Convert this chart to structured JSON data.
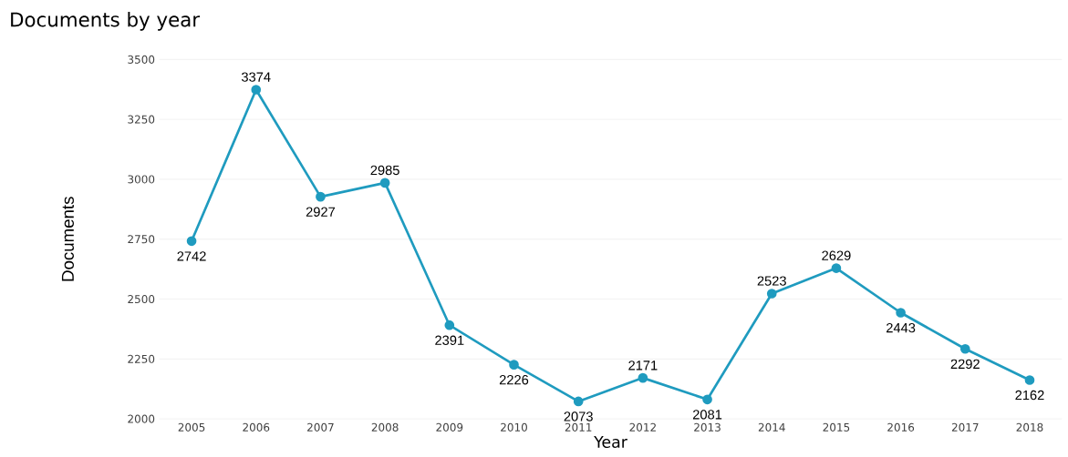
{
  "chart_data": {
    "type": "line",
    "title": "Documents by year",
    "xlabel": "Year",
    "ylabel": "Documents",
    "categories": [
      "2005",
      "2006",
      "2007",
      "2008",
      "2009",
      "2010",
      "2011",
      "2012",
      "2013",
      "2014",
      "2015",
      "2016",
      "2017",
      "2018"
    ],
    "values": [
      2742,
      3374,
      2927,
      2985,
      2391,
      2226,
      2073,
      2171,
      2081,
      2523,
      2629,
      2443,
      2292,
      2162
    ],
    "color": "#1f9bbf",
    "ylim": [
      2000,
      3500
    ],
    "yticks": [
      2000,
      2250,
      2500,
      2750,
      3000,
      3250,
      3500
    ],
    "grid": "y",
    "marker": "circle",
    "line_style": "solid",
    "data_labels": true
  }
}
